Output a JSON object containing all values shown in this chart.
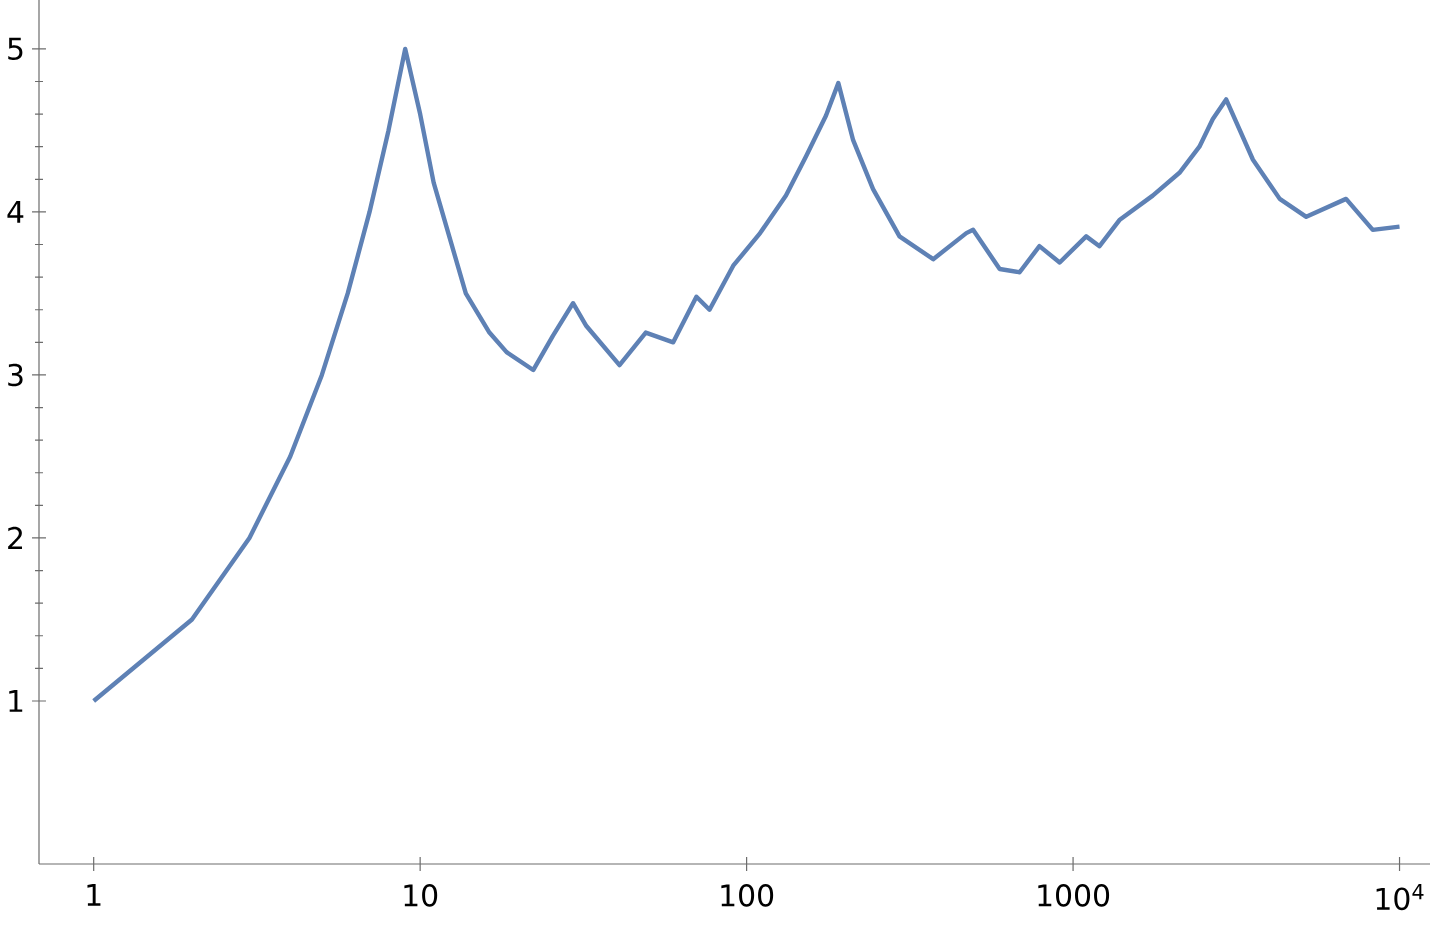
{
  "chart_data": {
    "type": "line",
    "log": "x",
    "line_style": "solid",
    "color": "#5e81b5",
    "xlim": [
      0.68,
      12400
    ],
    "ylim": [
      0,
      5.3
    ],
    "xticks": [
      1,
      10,
      100,
      1000,
      {
        "value": 10000,
        "label": "10$^{4}$"
      }
    ],
    "yticks": [
      1,
      2,
      3,
      4,
      5
    ],
    "x": [
      1,
      2,
      3,
      4,
      5,
      6,
      7,
      8,
      9,
      10,
      11,
      13.8,
      16.3,
      18.4,
      22.2,
      25.5,
      29.4,
      32.3,
      40.8,
      49.1,
      59.6,
      70.2,
      77,
      91,
      110,
      132,
      152,
      175,
      191,
      212,
      244,
      294,
      373,
      471,
      494,
      596,
      686,
      789,
      910,
      1097,
      1205,
      1387,
      1754,
      2118,
      2438,
      2680,
      2944,
      3557,
      4296,
      5180,
      6860,
      8280,
      10000
    ],
    "values": [
      1,
      1.5,
      2,
      2.5,
      3,
      3.5,
      4,
      4.5,
      5,
      4.6,
      4.18,
      3.5,
      3.26,
      3.14,
      3.03,
      3.24,
      3.44,
      3.3,
      3.06,
      3.26,
      3.2,
      3.48,
      3.4,
      3.67,
      3.87,
      4.1,
      4.34,
      4.59,
      4.79,
      4.44,
      4.14,
      3.85,
      3.71,
      3.87,
      3.89,
      3.65,
      3.63,
      3.79,
      3.69,
      3.85,
      3.79,
      3.95,
      4.1,
      4.24,
      4.4,
      4.57,
      4.69,
      4.32,
      4.08,
      3.97,
      4.08,
      3.89,
      3.91
    ]
  }
}
